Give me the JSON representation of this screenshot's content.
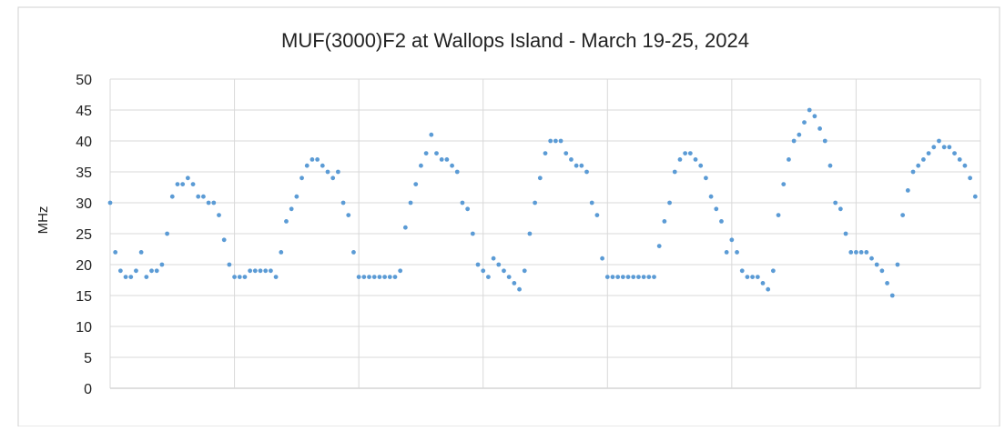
{
  "chart_data": {
    "type": "scatter",
    "title": "MUF(3000)F2 at Wallops Island - March 19-25, 2024",
    "y_label": "MHz",
    "color": "#5b9bd5",
    "grid": true,
    "xlim": [
      0,
      168
    ],
    "xticks": [
      0,
      24,
      48,
      72,
      96,
      120,
      144,
      168
    ],
    "ylim": [
      0,
      50
    ],
    "yticks": [
      0,
      5,
      10,
      15,
      20,
      25,
      30,
      35,
      40,
      45,
      50
    ],
    "x": [
      0,
      1,
      2,
      3,
      4,
      5,
      6,
      7,
      8,
      9,
      10,
      11,
      12,
      13,
      14,
      15,
      16,
      17,
      18,
      19,
      20,
      21,
      22,
      23,
      24,
      25,
      26,
      27,
      28,
      29,
      30,
      31,
      32,
      33,
      34,
      35,
      36,
      37,
      38,
      39,
      40,
      41,
      42,
      43,
      44,
      45,
      46,
      47,
      48,
      49,
      50,
      51,
      52,
      53,
      54,
      55,
      56,
      57,
      58,
      59,
      60,
      61,
      62,
      63,
      64,
      65,
      66,
      67,
      68,
      69,
      70,
      71,
      72,
      73,
      74,
      75,
      76,
      77,
      78,
      79,
      80,
      81,
      82,
      83,
      84,
      85,
      86,
      87,
      88,
      89,
      90,
      91,
      92,
      93,
      94,
      95,
      96,
      97,
      98,
      99,
      100,
      101,
      102,
      103,
      104,
      105,
      106,
      107,
      108,
      109,
      110,
      111,
      112,
      113,
      114,
      115,
      116,
      117,
      118,
      119,
      120,
      121,
      122,
      123,
      124,
      125,
      126,
      127,
      128,
      129,
      130,
      131,
      132,
      133,
      134,
      135,
      136,
      137,
      138,
      139,
      140,
      141,
      142,
      143,
      144,
      145,
      146,
      147,
      148,
      149,
      150,
      151,
      152,
      153,
      154,
      155,
      156,
      157,
      158,
      159,
      160,
      161,
      162,
      163,
      164,
      165,
      166,
      167
    ],
    "values": [
      30,
      22,
      19,
      18,
      18,
      19,
      22,
      18,
      19,
      19,
      20,
      25,
      31,
      33,
      33,
      34,
      33,
      31,
      31,
      30,
      30,
      28,
      24,
      20,
      18,
      18,
      18,
      19,
      19,
      19,
      19,
      19,
      18,
      22,
      27,
      29,
      31,
      34,
      36,
      37,
      37,
      36,
      35,
      34,
      35,
      30,
      28,
      22,
      18,
      18,
      18,
      18,
      18,
      18,
      18,
      18,
      19,
      26,
      30,
      33,
      36,
      38,
      41,
      38,
      37,
      37,
      36,
      35,
      30,
      29,
      25,
      20,
      19,
      18,
      21,
      20,
      19,
      18,
      17,
      16,
      19,
      25,
      30,
      34,
      38,
      40,
      40,
      40,
      38,
      37,
      36,
      36,
      35,
      30,
      28,
      21,
      18,
      18,
      18,
      18,
      18,
      18,
      18,
      18,
      18,
      18,
      23,
      27,
      30,
      35,
      37,
      38,
      38,
      37,
      36,
      34,
      31,
      29,
      27,
      22,
      24,
      22,
      19,
      18,
      18,
      18,
      17,
      16,
      19,
      28,
      33,
      37,
      40,
      41,
      43,
      45,
      44,
      42,
      40,
      36,
      30,
      29,
      25,
      22,
      22,
      22,
      22,
      21,
      20,
      19,
      17,
      15,
      20,
      28,
      32,
      35,
      36,
      37,
      38,
      39,
      40,
      39,
      39,
      38,
      37,
      36,
      34,
      31
    ]
  }
}
